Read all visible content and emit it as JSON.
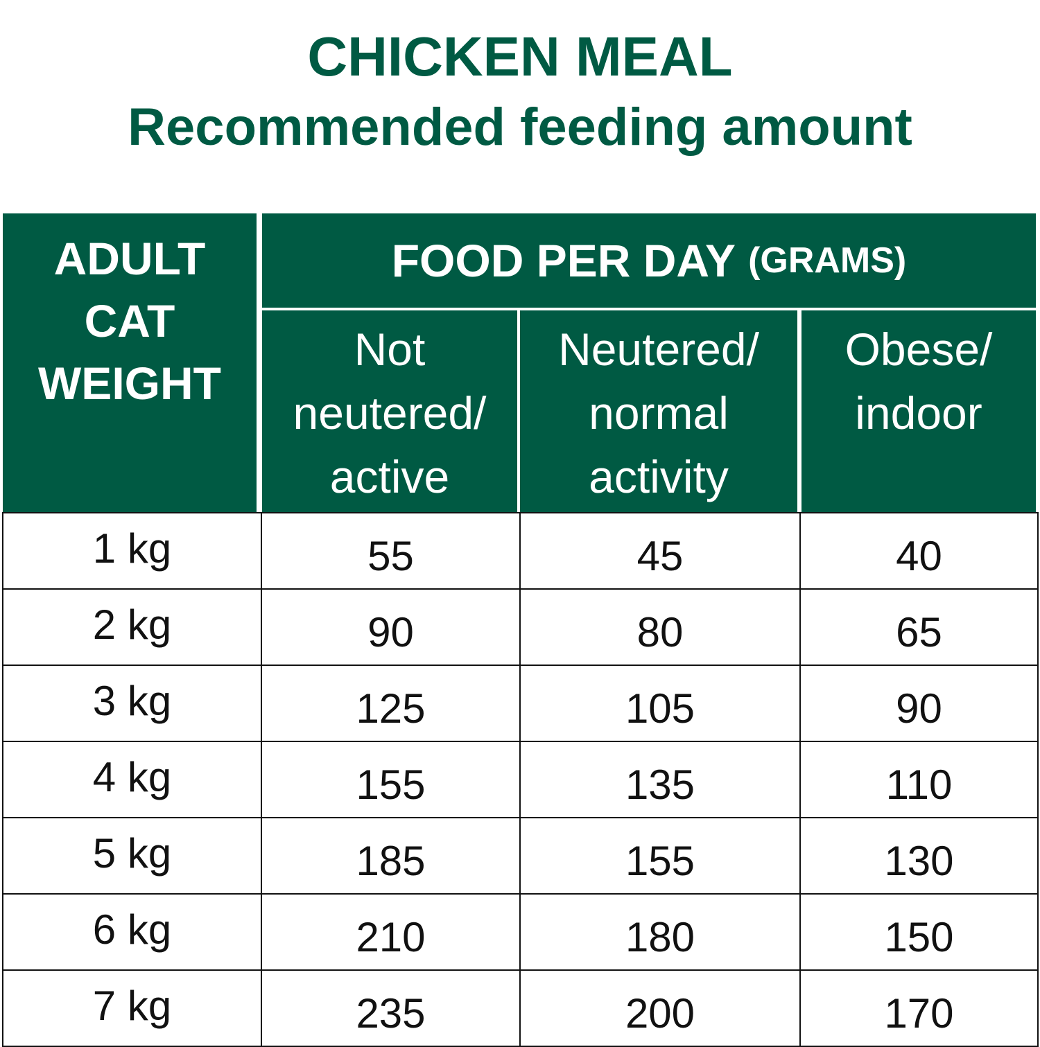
{
  "title": {
    "line1": "CHICKEN MEAL",
    "line2": "Recommended feeding amount"
  },
  "colors": {
    "brand_green": "#005a43",
    "header_text": "#ffffff",
    "border": "#111111"
  },
  "header": {
    "weight_col": "ADULT CAT WEIGHT",
    "food_main": "FOOD PER DAY",
    "food_unit": "(GRAMS)",
    "sub_columns": [
      "Not neutered/ active",
      "Neutered/ normal activity",
      "Obese/ indoor"
    ]
  },
  "rows": [
    {
      "weight": "1 kg",
      "active": "55",
      "normal": "45",
      "indoor": "40"
    },
    {
      "weight": "2 kg",
      "active": "90",
      "normal": "80",
      "indoor": "65"
    },
    {
      "weight": "3 kg",
      "active": "125",
      "normal": "105",
      "indoor": "90"
    },
    {
      "weight": "4 kg",
      "active": "155",
      "normal": "135",
      "indoor": "110"
    },
    {
      "weight": "5 kg",
      "active": "185",
      "normal": "155",
      "indoor": "130"
    },
    {
      "weight": "6 kg",
      "active": "210",
      "normal": "180",
      "indoor": "150"
    },
    {
      "weight": "7 kg",
      "active": "235",
      "normal": "200",
      "indoor": "170"
    }
  ]
}
